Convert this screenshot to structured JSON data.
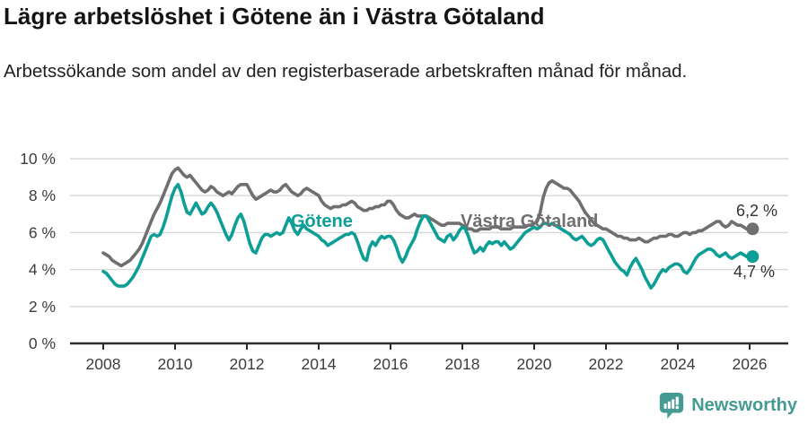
{
  "header": {
    "title": "Lägre arbetslöshet i Götene än i Västra Götaland",
    "subtitle": "Arbetssökande som andel av den registerbaserade arbetskraften månad för månad."
  },
  "footer": {
    "brand": "Newsworthy",
    "brand_color": "#459B94",
    "logo_icon": "bar-chart-speech-bubble-icon"
  },
  "chart_data": {
    "type": "line",
    "title": "Lägre arbetslöshet i Götene än i Västra Götaland",
    "subtitle": "Arbetssökande som andel av den registerbaserade arbetskraften månad för månad.",
    "unit": "%",
    "x_start_year": 2008,
    "x_interval": "monthly",
    "x_end": "2026-02",
    "xticks": [
      2008,
      2010,
      2012,
      2014,
      2016,
      2018,
      2020,
      2022,
      2024,
      2026
    ],
    "yticks": [
      0,
      2,
      4,
      6,
      8,
      10
    ],
    "ytick_labels": [
      "0 %",
      "2 %",
      "4 %",
      "6 %",
      "8 %",
      "10 %"
    ],
    "ylim": [
      0,
      10
    ],
    "grid": "horizontal",
    "legend_position": "inline-labels",
    "colors": {
      "gridline": "#d8d8d8",
      "axis": "#2e2e2e",
      "tick_text": "#3d3d3d",
      "end_label_text": "#333333"
    },
    "series": [
      {
        "name": "Västra Götaland",
        "color": "#6F6F6F",
        "end_label": "6,2 %",
        "last_value": 6.2,
        "values": [
          4.9,
          4.8,
          4.7,
          4.5,
          4.4,
          4.3,
          4.2,
          4.3,
          4.4,
          4.5,
          4.7,
          4.9,
          5.1,
          5.4,
          5.8,
          6.2,
          6.6,
          7.0,
          7.3,
          7.6,
          8.0,
          8.4,
          8.8,
          9.2,
          9.4,
          9.5,
          9.3,
          9.1,
          9.0,
          9.1,
          8.9,
          8.7,
          8.5,
          8.3,
          8.2,
          8.3,
          8.5,
          8.4,
          8.2,
          8.1,
          8.0,
          8.1,
          8.2,
          8.1,
          8.3,
          8.5,
          8.6,
          8.6,
          8.6,
          8.3,
          8.0,
          7.8,
          7.9,
          8.0,
          8.1,
          8.2,
          8.3,
          8.2,
          8.2,
          8.3,
          8.5,
          8.6,
          8.4,
          8.2,
          8.1,
          8.0,
          8.1,
          8.3,
          8.4,
          8.3,
          8.2,
          8.1,
          8.0,
          7.7,
          7.5,
          7.4,
          7.3,
          7.4,
          7.4,
          7.4,
          7.5,
          7.5,
          7.6,
          7.7,
          7.6,
          7.4,
          7.3,
          7.2,
          7.2,
          7.3,
          7.3,
          7.4,
          7.4,
          7.5,
          7.5,
          7.7,
          7.7,
          7.5,
          7.2,
          7.0,
          6.9,
          6.8,
          6.8,
          6.9,
          7.0,
          6.9,
          6.9,
          6.9,
          6.9,
          6.8,
          6.7,
          6.6,
          6.5,
          6.4,
          6.4,
          6.5,
          6.5,
          6.5,
          6.5,
          6.5,
          6.4,
          6.3,
          6.2,
          6.2,
          6.1,
          6.1,
          6.2,
          6.2,
          6.2,
          6.2,
          6.3,
          6.3,
          6.3,
          6.2,
          6.2,
          6.2,
          6.2,
          6.3,
          6.3,
          6.3,
          6.3,
          6.3,
          6.4,
          6.4,
          6.5,
          6.6,
          7.1,
          7.9,
          8.4,
          8.7,
          8.8,
          8.7,
          8.6,
          8.5,
          8.4,
          8.4,
          8.3,
          8.1,
          7.9,
          7.7,
          7.4,
          7.1,
          6.9,
          6.7,
          6.5,
          6.4,
          6.3,
          6.2,
          6.2,
          6.1,
          6.0,
          5.9,
          5.8,
          5.8,
          5.7,
          5.7,
          5.6,
          5.6,
          5.6,
          5.7,
          5.6,
          5.5,
          5.5,
          5.6,
          5.7,
          5.7,
          5.8,
          5.8,
          5.8,
          5.9,
          5.9,
          5.8,
          5.8,
          5.9,
          6.0,
          6.0,
          5.9,
          6.0,
          6.0,
          6.1,
          6.1,
          6.2,
          6.3,
          6.4,
          6.5,
          6.6,
          6.6,
          6.4,
          6.3,
          6.4,
          6.6,
          6.5,
          6.4,
          6.4,
          6.3,
          6.2,
          6.2,
          6.2
        ]
      },
      {
        "name": "Götene",
        "color": "#0D9E96",
        "end_label": "4,7 %",
        "last_value": 4.7,
        "values": [
          3.9,
          3.8,
          3.6,
          3.4,
          3.2,
          3.1,
          3.1,
          3.1,
          3.2,
          3.4,
          3.6,
          3.9,
          4.2,
          4.6,
          5.0,
          5.4,
          5.8,
          5.9,
          5.8,
          5.9,
          6.3,
          6.8,
          7.4,
          8.0,
          8.4,
          8.6,
          8.2,
          7.6,
          7.1,
          7.0,
          7.3,
          7.6,
          7.3,
          7.0,
          7.1,
          7.4,
          7.6,
          7.4,
          7.1,
          6.7,
          6.3,
          5.9,
          5.6,
          5.9,
          6.4,
          6.8,
          7.0,
          6.6,
          6.0,
          5.4,
          5.0,
          4.9,
          5.3,
          5.7,
          5.9,
          5.9,
          5.8,
          5.9,
          6.0,
          5.9,
          6.0,
          6.4,
          6.8,
          6.5,
          6.1,
          5.9,
          6.2,
          6.4,
          6.2,
          6.1,
          6.0,
          5.9,
          5.8,
          5.6,
          5.5,
          5.3,
          5.4,
          5.5,
          5.6,
          5.7,
          5.8,
          5.9,
          5.9,
          6.0,
          5.9,
          5.5,
          5.0,
          4.6,
          4.5,
          5.2,
          5.5,
          5.3,
          5.6,
          5.8,
          5.7,
          5.8,
          5.8,
          5.6,
          5.2,
          4.7,
          4.4,
          4.7,
          5.1,
          5.4,
          5.7,
          6.2,
          6.6,
          6.9,
          6.9,
          6.6,
          6.3,
          6.0,
          5.7,
          5.6,
          5.5,
          5.8,
          5.9,
          5.6,
          5.8,
          6.1,
          6.3,
          6.2,
          5.8,
          5.3,
          4.9,
          5.0,
          5.2,
          5.0,
          5.3,
          5.5,
          5.4,
          5.5,
          5.5,
          5.3,
          5.5,
          5.3,
          5.1,
          5.2,
          5.4,
          5.6,
          5.8,
          6.0,
          6.1,
          6.2,
          6.3,
          6.2,
          6.3,
          6.5,
          6.5,
          6.4,
          6.5,
          6.4,
          6.3,
          6.2,
          6.1,
          6.0,
          5.9,
          5.7,
          5.6,
          5.7,
          5.8,
          5.6,
          5.4,
          5.3,
          5.4,
          5.6,
          5.7,
          5.6,
          5.3,
          5.0,
          4.7,
          4.4,
          4.2,
          4.0,
          3.9,
          3.7,
          4.1,
          4.4,
          4.6,
          4.3,
          4.0,
          3.6,
          3.3,
          3.0,
          3.2,
          3.5,
          3.8,
          4.0,
          3.9,
          4.1,
          4.2,
          4.3,
          4.3,
          4.2,
          3.9,
          3.8,
          4.0,
          4.3,
          4.6,
          4.8,
          4.9,
          5.0,
          5.1,
          5.1,
          5.0,
          4.8,
          4.7,
          4.8,
          4.9,
          4.7,
          4.6,
          4.7,
          4.8,
          4.9,
          4.8,
          4.7,
          4.7,
          4.7
        ]
      }
    ]
  }
}
